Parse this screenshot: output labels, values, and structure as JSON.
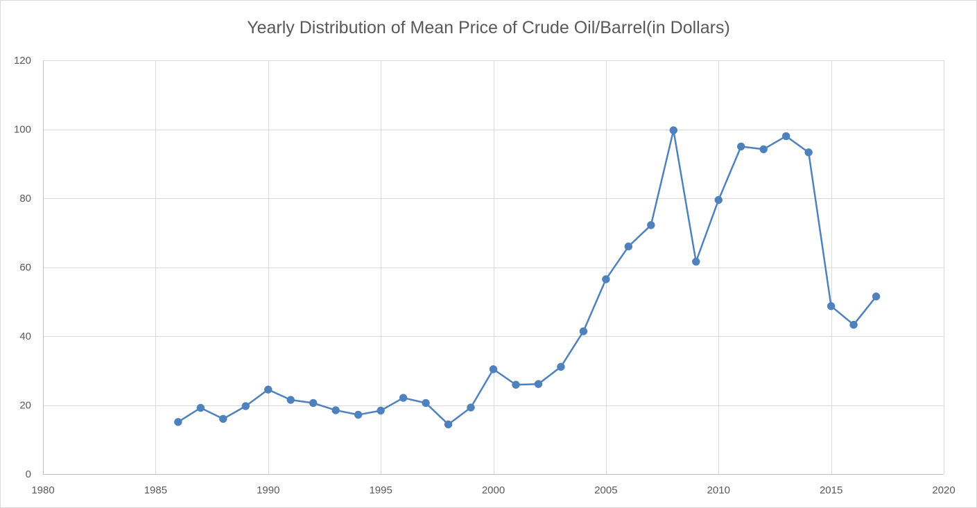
{
  "chart_data": {
    "type": "scatter",
    "title": "Yearly Distribution of Mean Price of Crude Oil/Barrel(in Dollars)",
    "xlabel": "",
    "ylabel": "",
    "xlim": [
      1980,
      2020
    ],
    "ylim": [
      0,
      120
    ],
    "xticks": [
      1980,
      1985,
      1990,
      1995,
      2000,
      2005,
      2010,
      2015,
      2020
    ],
    "yticks": [
      0,
      20,
      40,
      60,
      80,
      100,
      120
    ],
    "grid": true,
    "legend": "none",
    "series": [
      {
        "color": "#4f81bd",
        "marker": "circle",
        "line": true,
        "x": [
          1986,
          1987,
          1988,
          1989,
          1990,
          1991,
          1992,
          1993,
          1994,
          1995,
          1996,
          1997,
          1998,
          1999,
          2000,
          2001,
          2002,
          2003,
          2004,
          2005,
          2006,
          2007,
          2008,
          2009,
          2010,
          2011,
          2012,
          2013,
          2014,
          2015,
          2016,
          2017
        ],
        "y": [
          15.1,
          19.2,
          16.0,
          19.7,
          24.5,
          21.5,
          20.6,
          18.5,
          17.2,
          18.4,
          22.1,
          20.6,
          14.4,
          19.3,
          30.4,
          25.9,
          26.1,
          31.1,
          41.4,
          56.5,
          66.0,
          72.2,
          99.7,
          61.6,
          79.5,
          95.0,
          94.2,
          98.0,
          93.3,
          48.7,
          43.3,
          51.5
        ]
      }
    ]
  }
}
